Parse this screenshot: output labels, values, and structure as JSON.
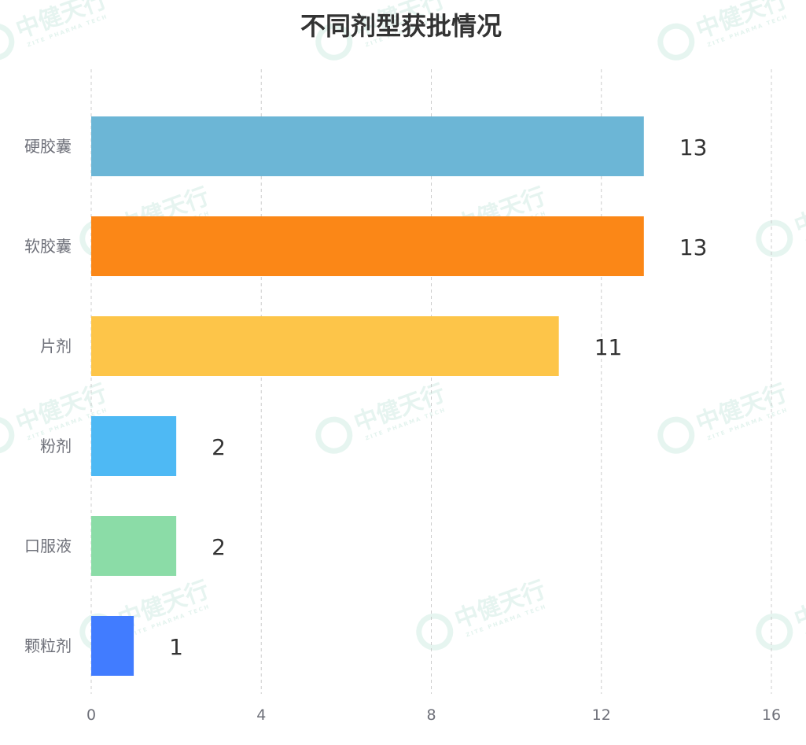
{
  "watermark": {
    "text": "中健天行",
    "subtext": "ZITE PHARMA TECH"
  },
  "chart_data": {
    "type": "bar",
    "orientation": "horizontal",
    "title": "不同剂型获批情况",
    "categories": [
      "硬胶囊",
      "软胶囊",
      "片剂",
      "粉剂",
      "口服液",
      "颗粒剂"
    ],
    "values": [
      13,
      13,
      11,
      2,
      2,
      1
    ],
    "colors": [
      "#6cb6d6",
      "#fb8717",
      "#fdc549",
      "#4eb9f4",
      "#8bdca7",
      "#417cff"
    ],
    "xlim": [
      0,
      16
    ],
    "xticks": [
      "0",
      "4",
      "8",
      "12",
      "16"
    ],
    "grid": "vertical-dashed",
    "data_labels": true
  }
}
